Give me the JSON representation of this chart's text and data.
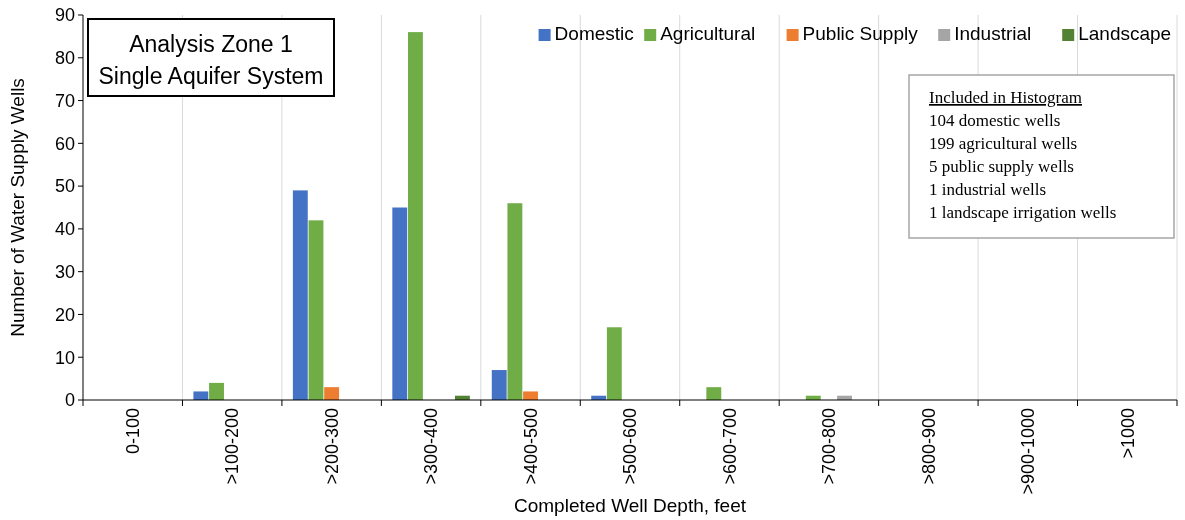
{
  "chart_data": {
    "type": "bar",
    "title": "Analysis Zone 1",
    "subtitle": "Single Aquifer System",
    "xlabel": "Completed Well Depth, feet",
    "ylabel": "Number of Water Supply Wells",
    "categories": [
      "0-100",
      ">100-200",
      ">200-300",
      ">300-400",
      ">400-500",
      ">500-600",
      ">600-700",
      ">700-800",
      ">800-900",
      ">900-1000",
      ">1000"
    ],
    "series": [
      {
        "name": "Domestic",
        "color": "#4472c4",
        "values": [
          0,
          2,
          49,
          45,
          7,
          1,
          0,
          0,
          0,
          0,
          0
        ]
      },
      {
        "name": "Agricultural",
        "color": "#70ad47",
        "values": [
          0,
          4,
          42,
          86,
          46,
          17,
          3,
          1,
          0,
          0,
          0
        ]
      },
      {
        "name": "Public Supply",
        "color": "#ed7d31",
        "values": [
          0,
          0,
          3,
          0,
          2,
          0,
          0,
          0,
          0,
          0,
          0
        ]
      },
      {
        "name": "Industrial",
        "color": "#a5a5a5",
        "values": [
          0,
          0,
          0,
          0,
          0,
          0,
          0,
          1,
          0,
          0,
          0
        ]
      },
      {
        "name": "Landscape",
        "color": "#548235",
        "values": [
          0,
          0,
          0,
          1,
          0,
          0,
          0,
          0,
          0,
          0,
          0
        ]
      }
    ],
    "ylim": [
      0,
      90
    ],
    "yticks": [
      0,
      10,
      20,
      30,
      40,
      50,
      60,
      70,
      80,
      90
    ],
    "grid": "x",
    "legend": "top right",
    "annotations": [
      "Included in Histogram",
      "104 domestic wells",
      "199 agricultural wells",
      "5 public supply wells",
      "1 industrial wells",
      "1 landscape irrigation wells"
    ]
  }
}
